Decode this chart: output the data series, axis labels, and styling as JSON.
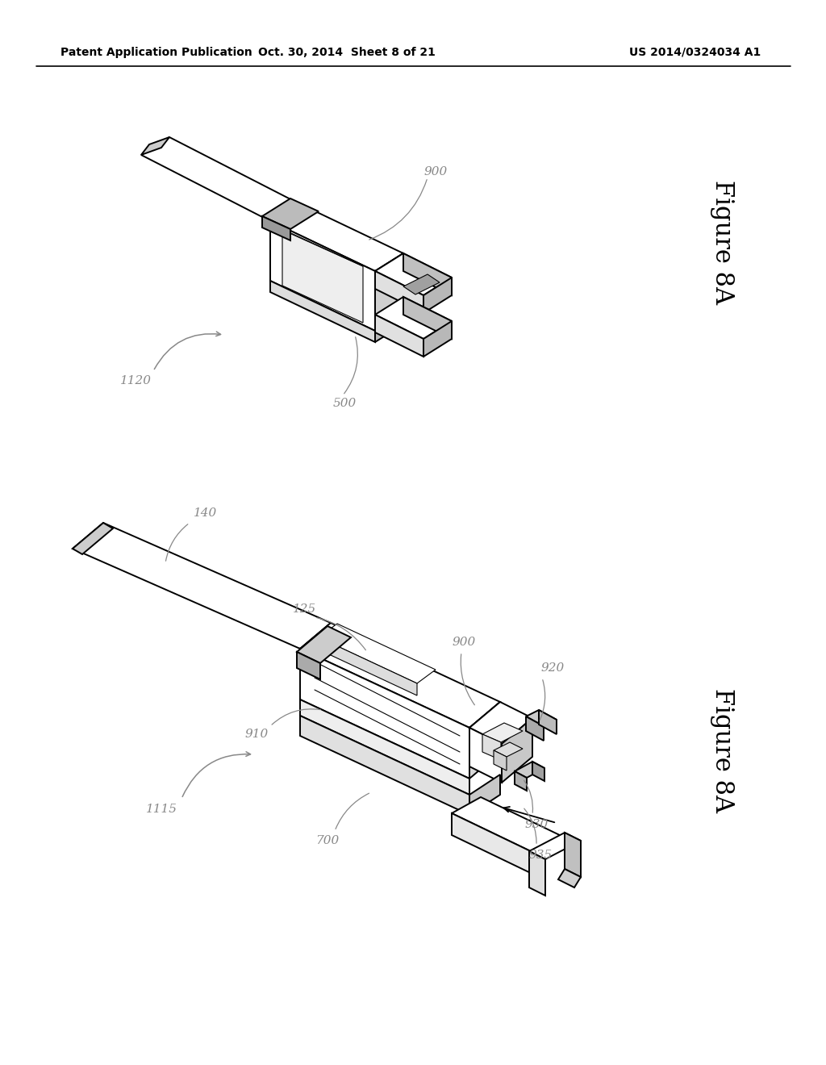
{
  "background_color": "#ffffff",
  "header_left": "Patent Application Publication",
  "header_mid": "Oct. 30, 2014  Sheet 8 of 21",
  "header_right": "US 2014/0324034 A1",
  "fig_label_top": "Figure 8A",
  "fig_label_bot": "Figure 8A",
  "line_color": "#000000",
  "label_color": "#888888",
  "lw_main": 1.4,
  "lw_thin": 0.8,
  "label_fs": 11
}
